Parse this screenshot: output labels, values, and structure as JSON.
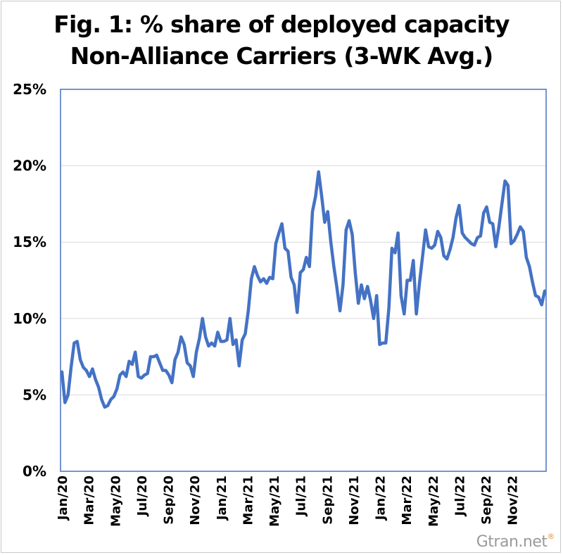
{
  "chart_data": {
    "type": "line",
    "title": "Fig. 1: % share of deployed capacity",
    "subtitle": "Non-Alliance Carriers (3-WK Avg.)",
    "xlabel": "",
    "ylabel": "",
    "ylim": [
      0,
      25
    ],
    "yticks": [
      "0%",
      "5%",
      "10%",
      "15%",
      "20%",
      "25%"
    ],
    "ytick_values": [
      0,
      5,
      10,
      15,
      20,
      25
    ],
    "xticks": [
      "Jan/20",
      "Mar/20",
      "May/20",
      "Jul/20",
      "Sep/20",
      "Nov/20",
      "Jan/21",
      "Mar/21",
      "May/21",
      "Jul/21",
      "Sep/21",
      "Nov/21",
      "Jan/22",
      "Mar/22",
      "May/22",
      "Jul/22",
      "Sep/22",
      "Nov/22"
    ],
    "grid": true,
    "legend": "none",
    "series": [
      {
        "color": "#4472c4",
        "x_start": "Jan/20",
        "values": [
          6.5,
          4.5,
          5.0,
          6.8,
          8.4,
          8.5,
          7.3,
          6.8,
          6.6,
          6.2,
          6.7,
          6.0,
          5.5,
          4.7,
          4.2,
          4.3,
          4.7,
          4.9,
          5.4,
          6.3,
          6.5,
          6.2,
          7.2,
          7.0,
          7.8,
          6.2,
          6.1,
          6.3,
          6.4,
          7.5,
          7.5,
          7.6,
          7.1,
          6.6,
          6.6,
          6.3,
          5.8,
          7.3,
          7.8,
          8.8,
          8.3,
          7.1,
          6.9,
          6.2,
          7.8,
          8.7,
          10.0,
          8.8,
          8.2,
          8.4,
          8.2,
          9.1,
          8.5,
          8.5,
          8.6,
          10.0,
          8.3,
          8.6,
          6.9,
          8.6,
          9.0,
          10.5,
          12.6,
          13.4,
          12.8,
          12.4,
          12.6,
          12.3,
          12.7,
          12.6,
          14.9,
          15.6,
          16.2,
          14.6,
          14.4,
          12.7,
          12.2,
          10.4,
          13.0,
          13.2,
          14.0,
          13.4,
          17.0,
          18.0,
          19.6,
          18.0,
          16.3,
          17.0,
          15.0,
          13.4,
          12.0,
          10.5,
          12.2,
          15.8,
          16.4,
          15.5,
          13.0,
          11.0,
          12.2,
          11.3,
          12.1,
          11.2,
          10.0,
          11.5,
          8.3,
          8.4,
          8.4,
          10.7,
          14.6,
          14.3,
          15.6,
          11.5,
          10.3,
          12.5,
          12.5,
          13.8,
          10.3,
          12.3,
          14.0,
          15.8,
          14.7,
          14.6,
          14.8,
          15.7,
          15.3,
          14.1,
          13.9,
          14.5,
          15.3,
          16.6,
          17.4,
          15.6,
          15.3,
          15.1,
          14.9,
          14.8,
          15.3,
          15.4,
          16.9,
          17.3,
          16.3,
          16.2,
          14.7,
          16.0,
          17.5,
          19.0,
          18.7,
          14.9,
          15.1,
          15.5,
          16.0,
          15.7,
          14.0,
          13.4,
          12.4,
          11.5,
          11.4,
          10.9,
          11.8
        ]
      }
    ]
  },
  "watermark": {
    "text": "Gtran.net",
    "mark": "®"
  }
}
